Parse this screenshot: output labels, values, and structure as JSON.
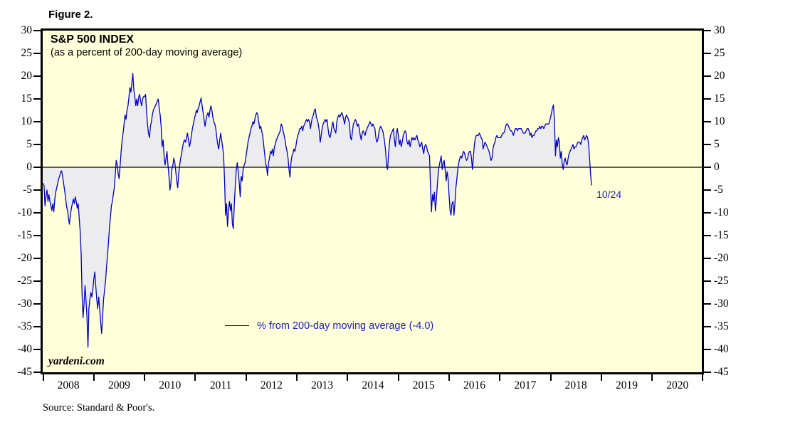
{
  "figure_label": "Figure 2.",
  "source_note": "Source: Standard & Poor's.",
  "watermark": "yardeni.com",
  "chart_data": {
    "type": "line",
    "title": "S&P 500 INDEX",
    "subtitle": "(as a percent of 200-day moving average)",
    "legend": [
      {
        "label": "% from 200-day moving average (-4.0)",
        "color": "#0000c8"
      }
    ],
    "annotations": [
      {
        "text": "10/24",
        "x": 2018.82,
        "y": -4.0
      }
    ],
    "ylim": [
      -45,
      30
    ],
    "yticks": [
      30,
      25,
      20,
      15,
      10,
      5,
      0,
      -5,
      -10,
      -15,
      -20,
      -25,
      -30,
      -35,
      -40,
      -45
    ],
    "ytick_labels_both_sides": true,
    "zero_line": 0,
    "x_years": [
      2008,
      2009,
      2010,
      2011,
      2012,
      2013,
      2014,
      2015,
      2016,
      2017,
      2018,
      2019,
      2020
    ],
    "points_per_year": 52,
    "grid": "off",
    "legend_position": "bottom-center-inside",
    "colors": {
      "line": "#0000c8",
      "fill": "#ececee",
      "plot_bg": "#ffffd9",
      "annotation_text": "#2020c8",
      "axis_text": "#000000"
    },
    "last_value": -4.0,
    "last_date_label": "10/24",
    "series": [
      {
        "name": "% from 200-day moving average",
        "values_by_year": {
          "2008": [
            -3.5,
            -4,
            -8.5,
            -6.5,
            -5,
            -7.5,
            -6,
            -7.5,
            -8.5,
            -9.5,
            -8,
            -9.8,
            -7,
            -5.5,
            -4.5,
            -3.5,
            -2.5,
            -2,
            -1,
            -0.8,
            -2,
            -3.5,
            -5,
            -6.5,
            -8.5,
            -9.5,
            -11,
            -12.5,
            -10.5,
            -9,
            -8,
            -7,
            -8,
            -6.5,
            -7.5,
            -9,
            -8,
            -11,
            -14,
            -19,
            -28,
            -33,
            -30,
            -26,
            -29,
            -33,
            -39.5,
            -31,
            -29,
            -27.5,
            -28.5,
            -27
          ],
          "2009": [
            -24.5,
            -23,
            -26,
            -29,
            -31,
            -28.5,
            -31,
            -34,
            -36.5,
            -33,
            -29,
            -27,
            -25,
            -22,
            -19.5,
            -16.5,
            -13.5,
            -11,
            -8.5,
            -7.5,
            -6,
            -4.5,
            -1.5,
            1.5,
            0.5,
            -1.5,
            -2.5,
            0.5,
            3.5,
            6,
            7.5,
            9.5,
            11.5,
            10.5,
            12.5,
            13.5,
            15.5,
            17.5,
            16.5,
            18.5,
            20.6,
            17,
            15.5,
            13.5,
            15,
            13.5,
            15.5,
            16,
            14.5,
            13.5,
            15,
            15.5
          ],
          "2010": [
            15.5,
            16,
            12.5,
            9.5,
            7.5,
            6.5,
            9,
            10,
            11.5,
            12.5,
            13,
            13.5,
            14,
            14.5,
            15,
            13,
            11.5,
            9,
            4.5,
            6,
            2.5,
            0.5,
            2,
            3.5,
            0.5,
            -2,
            -5,
            -3.5,
            -0.5,
            0.5,
            2,
            1,
            -1,
            -3,
            -4.5,
            -1.5,
            0.5,
            2,
            3,
            4.5,
            5.5,
            6,
            5.5,
            6.5,
            7.5,
            6,
            4.5,
            5.5,
            7,
            8.5,
            9.5,
            10.5
          ],
          "2011": [
            11.5,
            12.5,
            12,
            13,
            13.5,
            14.5,
            15.2,
            13.5,
            12,
            10.5,
            9,
            10.5,
            11.5,
            12,
            11,
            12.5,
            13.5,
            12.5,
            11,
            10,
            9.5,
            8.5,
            6.5,
            5,
            4,
            6,
            7.5,
            6,
            4.5,
            2.5,
            -3,
            -10.5,
            -8,
            -13,
            -9.5,
            -7.5,
            -9.5,
            -8,
            -12.5,
            -13.5,
            -8,
            -4,
            -0.5,
            1,
            -1,
            -3.5,
            -6.5,
            -2,
            -3,
            -0.5,
            0.5,
            1
          ],
          "2012": [
            2.5,
            4,
            5.5,
            6.5,
            7.5,
            8.5,
            9,
            10,
            9.5,
            10.5,
            11.5,
            12,
            11.5,
            10,
            8.5,
            9,
            8,
            7,
            5,
            3,
            1,
            0,
            -1.8,
            1,
            2,
            3.5,
            3,
            4,
            2.5,
            4.5,
            5,
            6,
            6.5,
            7,
            7.5,
            8,
            9.5,
            9,
            8,
            7,
            6,
            4.5,
            3.5,
            2,
            -0.5,
            -2.2,
            1,
            2.5,
            3,
            4,
            3.5,
            4.5
          ],
          "2013": [
            6,
            7,
            7.5,
            8.5,
            8.5,
            9,
            8,
            9,
            9.5,
            10,
            10.5,
            10,
            10.5,
            10,
            8.5,
            10,
            11,
            11.5,
            12.5,
            12.8,
            11,
            10.5,
            9.5,
            8,
            5.5,
            7,
            8.5,
            9.5,
            10,
            10.5,
            10,
            10.5,
            8.5,
            7,
            6.5,
            7.5,
            9,
            10,
            8.5,
            8,
            7.5,
            10,
            11,
            11.5,
            11,
            11.5,
            12,
            11.5,
            10.5,
            9.5,
            11,
            11.5
          ],
          "2014": [
            11,
            10.5,
            9.5,
            6.5,
            6,
            8,
            9.5,
            10,
            10.5,
            10,
            9,
            9.5,
            8.5,
            7,
            6,
            7.5,
            8,
            7.5,
            7,
            8,
            8.5,
            9,
            9.5,
            10,
            9.5,
            9,
            9.5,
            9,
            8.5,
            6.5,
            5.5,
            6,
            7.5,
            8.5,
            9,
            8.5,
            8,
            7,
            5.5,
            3.5,
            0.5,
            -0.5,
            3,
            5.5,
            7,
            7.5,
            8,
            8.5,
            6,
            4.5,
            7.5,
            8.5
          ],
          "2015": [
            7,
            5,
            6,
            4.5,
            5.5,
            7,
            7.5,
            8,
            7.5,
            5.5,
            5,
            6,
            4.5,
            5.5,
            6.5,
            6,
            6.5,
            6,
            6.5,
            7,
            6,
            5.5,
            4.5,
            5,
            5.5,
            4,
            3,
            4.5,
            5,
            4.5,
            3.5,
            3,
            2.5,
            -4.5,
            -9.8,
            -6,
            -7.5,
            -5.5,
            -9.6,
            -7,
            -4,
            -1,
            0.5,
            1.5,
            2.5,
            -0.5,
            1,
            1.5,
            -0.5,
            -3,
            -1,
            -2.5
          ],
          "2016": [
            -6,
            -9.5,
            -10.5,
            -8,
            -7.5,
            -10.5,
            -8,
            -4.5,
            -2.5,
            -0.5,
            1,
            2,
            2.5,
            2,
            3,
            3.5,
            3,
            2,
            1.5,
            2,
            3,
            3.5,
            3.5,
            2,
            -0.5,
            2.5,
            5,
            6.5,
            7,
            7,
            7,
            7.5,
            7,
            6.5,
            6,
            4,
            5,
            5.5,
            5,
            4.5,
            4,
            3.5,
            2.5,
            1.5,
            2,
            4,
            5,
            5.5,
            6.5,
            7,
            6.5,
            6.5
          ],
          "2017": [
            6.5,
            6.5,
            7,
            7.5,
            7.5,
            8,
            9,
            9.5,
            9.5,
            9,
            8.5,
            8,
            8,
            7.5,
            7,
            8,
            8.5,
            8.5,
            8,
            8.5,
            8.5,
            8.5,
            8.5,
            8,
            7.5,
            7.5,
            7.5,
            8,
            8.5,
            8.5,
            8,
            7,
            7.5,
            6.5,
            7,
            7,
            7.5,
            8,
            8,
            8.5,
            8.5,
            9,
            8.5,
            9,
            9,
            8.5,
            9,
            9.5,
            9.5,
            9.5,
            9.5,
            10
          ],
          "2018": [
            11,
            12,
            13,
            13.7,
            10,
            2.5,
            6,
            4.5,
            6.5,
            5.5,
            2,
            3.5,
            0.5,
            -0.5,
            1.5,
            2,
            1,
            0.5,
            2,
            3,
            3.5,
            4,
            4.5,
            5,
            4,
            4.5,
            4.5,
            5,
            5.5,
            5.5,
            5.5,
            5,
            6,
            6.5,
            7,
            6,
            6.5,
            7,
            6.5,
            5,
            2,
            -1.5,
            -4.0
          ]
        }
      }
    ]
  }
}
